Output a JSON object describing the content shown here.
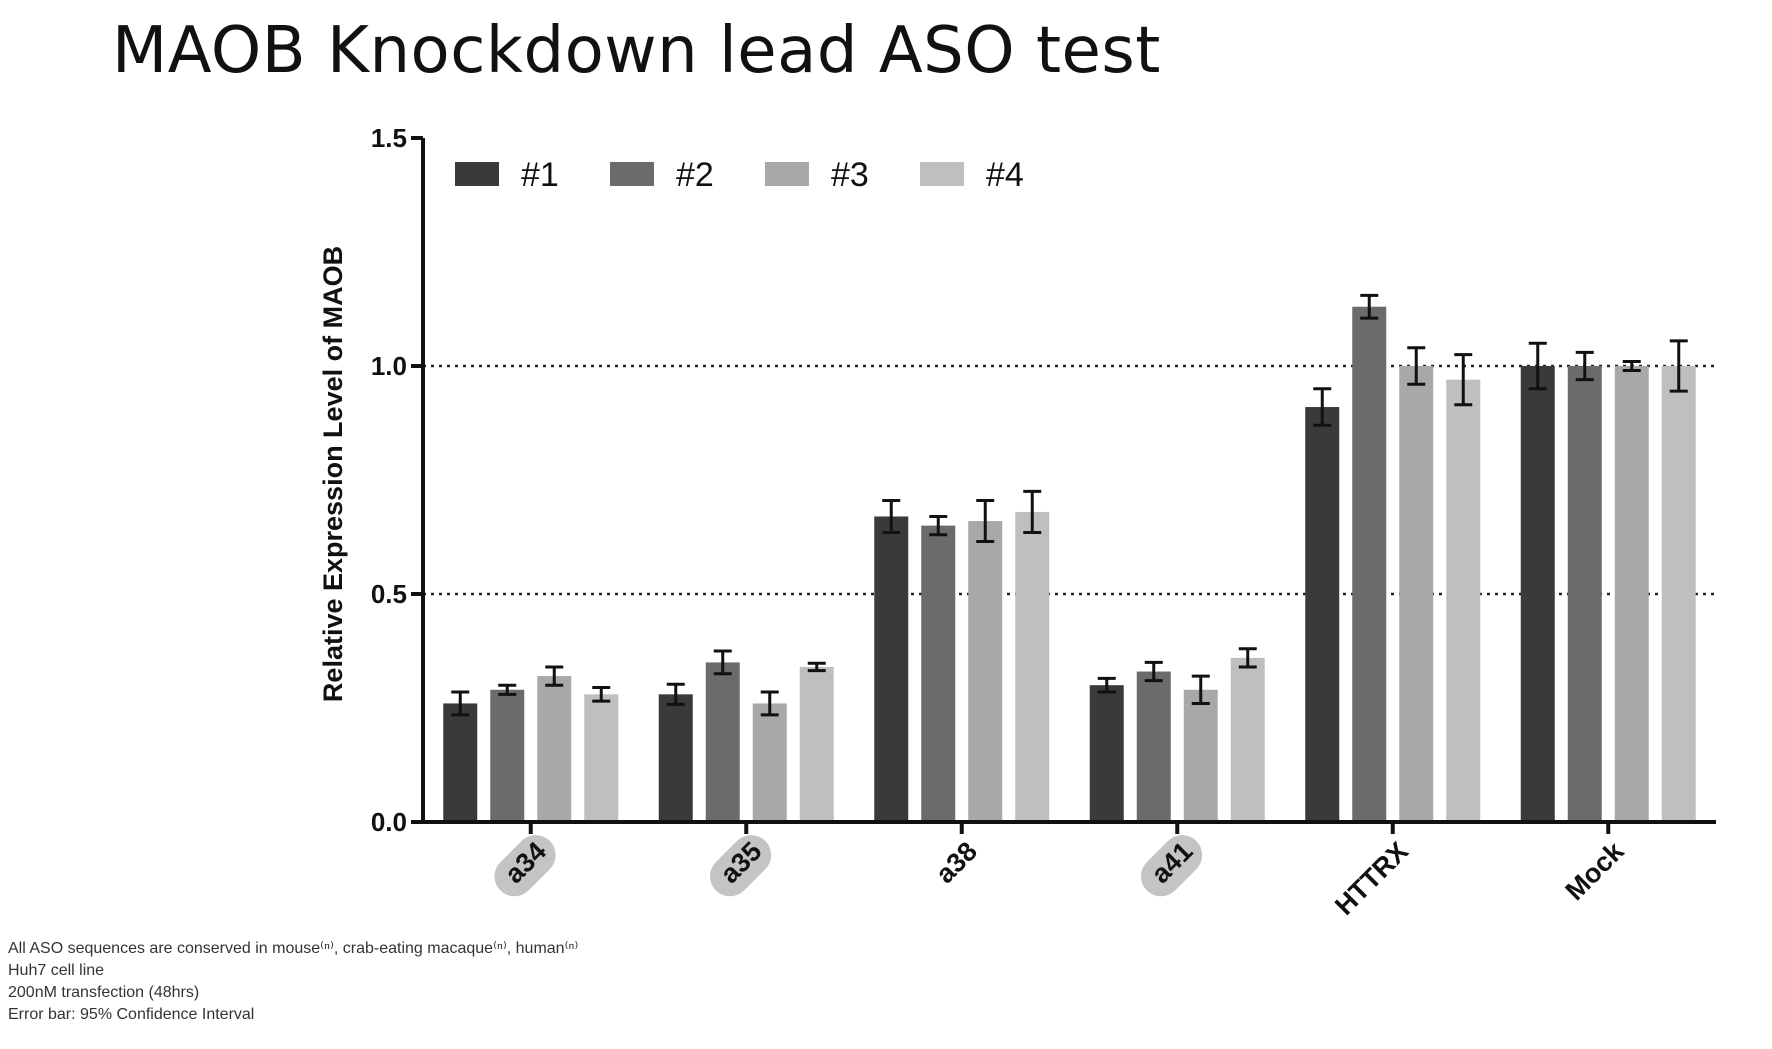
{
  "title": "MAOB Knockdown lead ASO test",
  "chart_data": {
    "type": "bar",
    "ylabel": "Relative Expression Level of MAOB",
    "xlabel": "",
    "ylim": [
      0,
      1.5
    ],
    "yticks": [
      "0.0",
      "0.5",
      "1.0",
      "1.5"
    ],
    "reference_lines": [
      0.5,
      1.0
    ],
    "legend_position": "top-left",
    "categories": [
      "a34",
      "a35",
      "a38",
      "a41",
      "HTTRX",
      "Mock"
    ],
    "highlighted_categories": [
      "a34",
      "a35",
      "a41"
    ],
    "series": [
      {
        "name": "#1",
        "color": "#3a3a3a",
        "values": [
          0.26,
          0.28,
          0.67,
          0.3,
          0.91,
          1.0
        ],
        "errors": [
          0.025,
          0.022,
          0.035,
          0.015,
          0.04,
          0.05
        ]
      },
      {
        "name": "#2",
        "color": "#6b6b6b",
        "values": [
          0.29,
          0.35,
          0.65,
          0.33,
          1.13,
          1.0
        ],
        "errors": [
          0.01,
          0.025,
          0.02,
          0.02,
          0.025,
          0.03
        ]
      },
      {
        "name": "#3",
        "color": "#a8a8a8",
        "values": [
          0.32,
          0.26,
          0.66,
          0.29,
          1.0,
          1.0
        ],
        "errors": [
          0.02,
          0.025,
          0.045,
          0.03,
          0.04,
          0.01
        ]
      },
      {
        "name": "#4",
        "color": "#bfbfbf",
        "values": [
          0.28,
          0.34,
          0.68,
          0.36,
          0.97,
          1.0
        ],
        "errors": [
          0.015,
          0.008,
          0.045,
          0.02,
          0.055,
          0.055
        ]
      }
    ]
  },
  "footnotes": [
    "All ASO sequences are conserved in mouse⁽ⁿ⁾, crab-eating macaque⁽ⁿ⁾, human⁽ⁿ⁾",
    "Huh7 cell line",
    "200nM transfection (48hrs)",
    "Error bar: 95% Confidence Interval"
  ]
}
